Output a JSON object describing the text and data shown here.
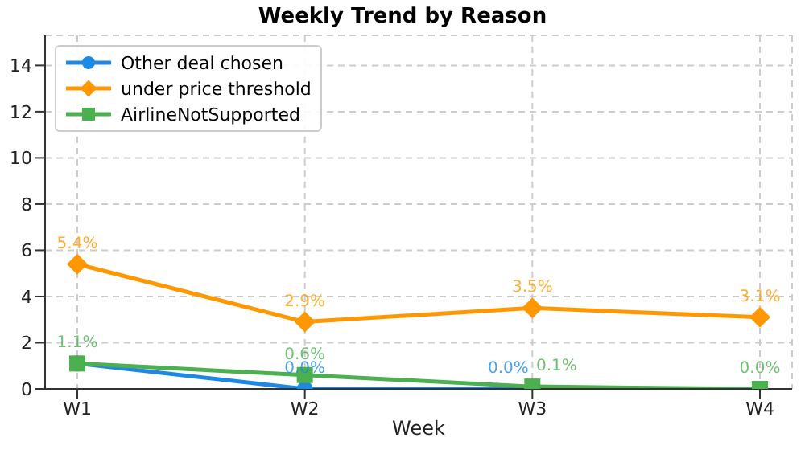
{
  "chart_data": {
    "type": "line",
    "title": "Weekly Trend by Reason",
    "xlabel": "Week",
    "categories": [
      "W1",
      "W2",
      "W3",
      "W4"
    ],
    "series": [
      {
        "name": "Other deal chosen",
        "color": "#1e88e5",
        "marker": "circle",
        "values": [
          1.1,
          0.0,
          0.0,
          0.0
        ],
        "value_labels": [
          null,
          "0.0%",
          "0.0%",
          null
        ]
      },
      {
        "name": "under price threshold",
        "color": "#ff9800",
        "marker": "diamond",
        "values": [
          5.4,
          2.9,
          3.5,
          3.1
        ],
        "value_labels": [
          "5.4%",
          "2.9%",
          "3.5%",
          "3.1%"
        ]
      },
      {
        "name": "AirlineNotSupported",
        "color": "#4caf50",
        "marker": "square",
        "values": [
          1.1,
          0.6,
          0.1,
          0.0
        ],
        "value_labels": [
          "1.1%",
          "0.6%",
          "0.1%",
          "0.0%"
        ]
      }
    ],
    "ylim": [
      0,
      15.3
    ],
    "yticks": [
      0,
      2,
      4,
      6,
      8,
      10,
      12,
      14
    ],
    "grid": true,
    "legend": "top left"
  }
}
